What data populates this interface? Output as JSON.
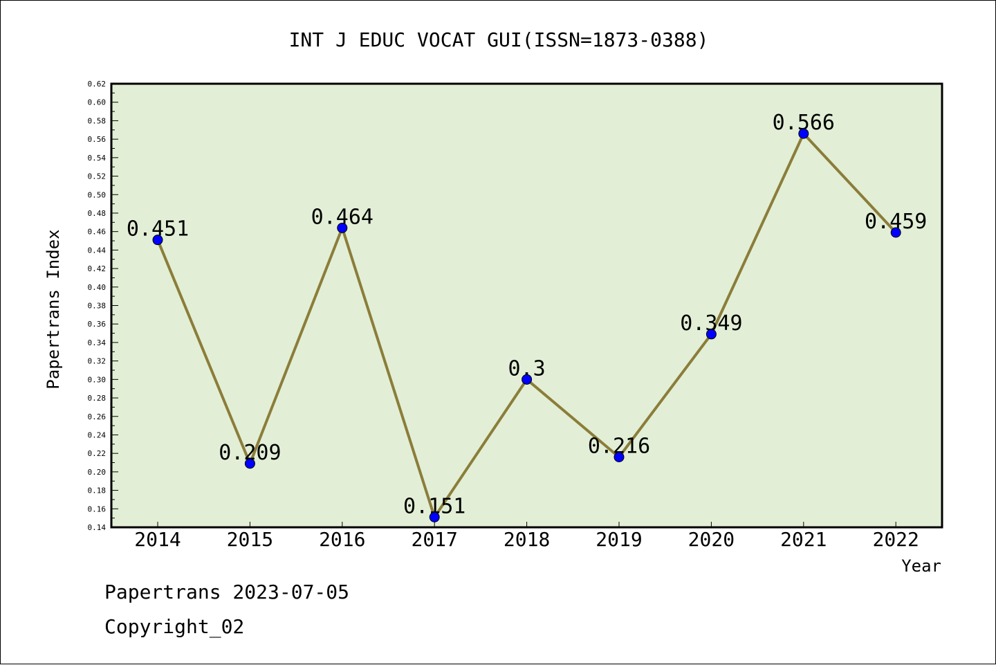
{
  "chart_data": {
    "type": "line",
    "title": "INT J EDUC VOCAT GUI(ISSN=1873-0388)",
    "xlabel": "Year",
    "ylabel": "Papertrans Index",
    "categories": [
      "2014",
      "2015",
      "2016",
      "2017",
      "2018",
      "2019",
      "2020",
      "2021",
      "2022"
    ],
    "series": [
      {
        "values": [
          0.451,
          0.209,
          0.464,
          0.151,
          0.3,
          0.216,
          0.349,
          0.566,
          0.459
        ],
        "labels": [
          "0.451",
          "0.209",
          "0.464",
          "0.151",
          "0.3",
          "0.216",
          "0.349",
          "0.566",
          "0.459"
        ]
      }
    ],
    "ylim": [
      0.14,
      0.62
    ],
    "yticks": [
      "0.14",
      "0.16",
      "0.18",
      "0.20",
      "0.22",
      "0.24",
      "0.26",
      "0.28",
      "0.30",
      "0.32",
      "0.34",
      "0.36",
      "0.38",
      "0.40",
      "0.42",
      "0.44",
      "0.46",
      "0.48",
      "0.50",
      "0.52",
      "0.54",
      "0.56",
      "0.58",
      "0.60",
      "0.62"
    ],
    "grid": false,
    "legend": "none",
    "colors": {
      "plot_background": "#e2efd6",
      "line": "#8b7d3a",
      "marker": "#0000ff"
    }
  },
  "footer": {
    "line1": "Papertrans 2023-07-05",
    "line2": "Copyright_02"
  }
}
